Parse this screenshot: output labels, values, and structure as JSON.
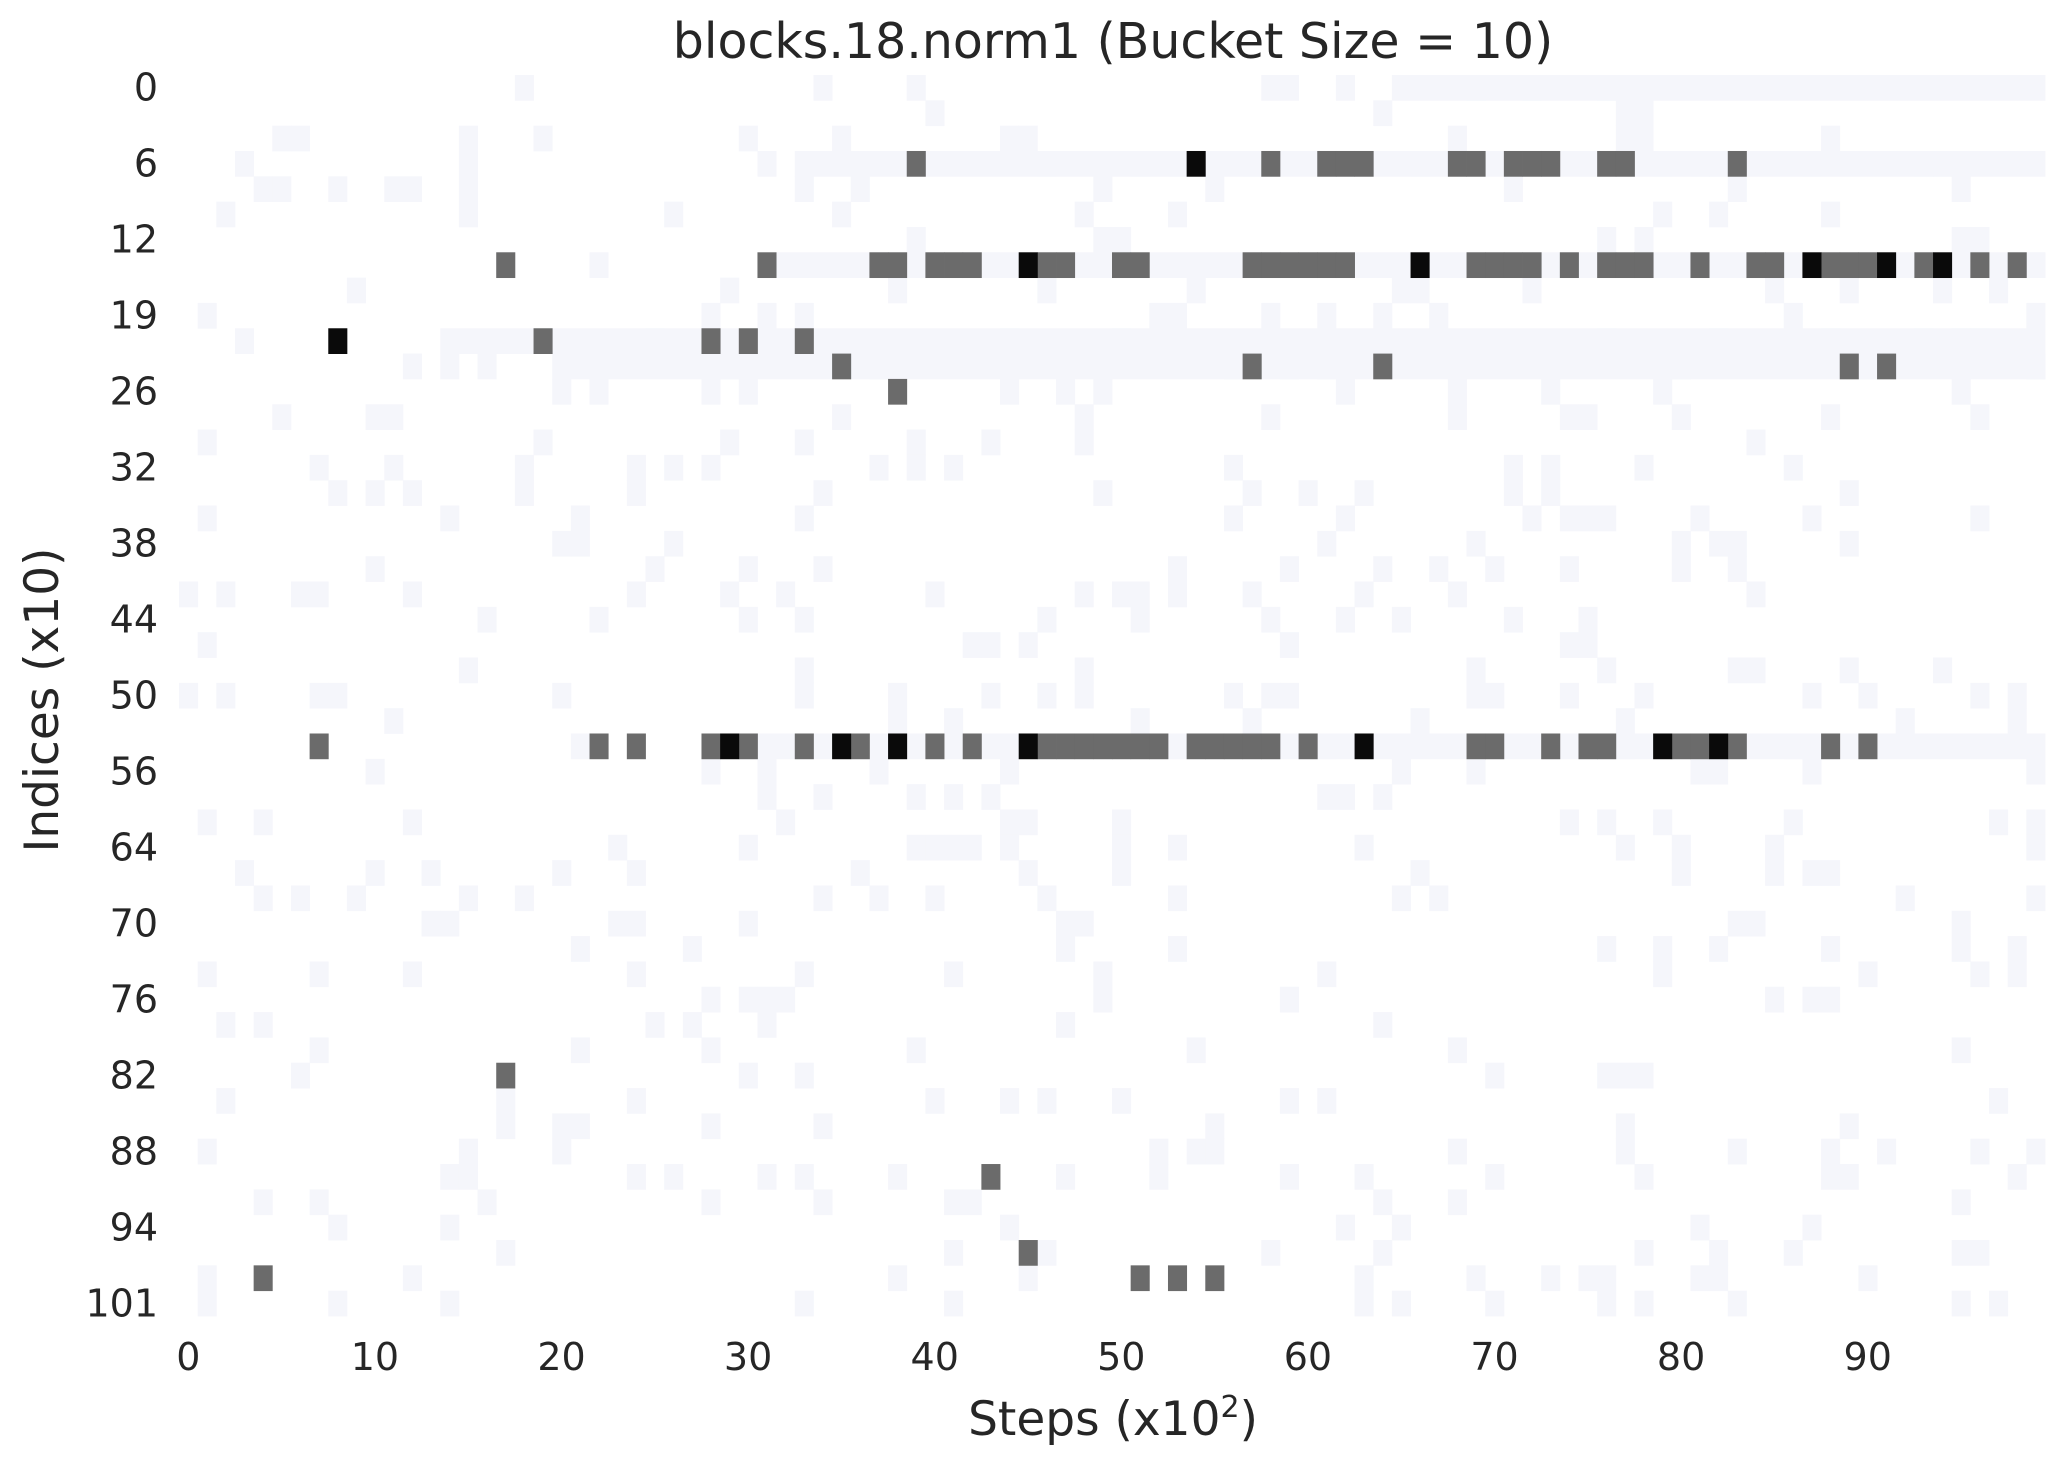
{
  "chart_data": {
    "type": "heatmap",
    "title": "blocks.18.norm1 (Bucket Size = 10)",
    "xlabel": "Steps (x10",
    "xlabel_superscript": "2",
    "xlabel_suffix": ")",
    "ylabel": "Indices (x10)",
    "n_cols": 100,
    "n_rows": 49,
    "x_ticks": [
      {
        "col": 0,
        "label": "0"
      },
      {
        "col": 10,
        "label": "10"
      },
      {
        "col": 20,
        "label": "20"
      },
      {
        "col": 30,
        "label": "30"
      },
      {
        "col": 40,
        "label": "40"
      },
      {
        "col": 50,
        "label": "50"
      },
      {
        "col": 60,
        "label": "60"
      },
      {
        "col": 70,
        "label": "70"
      },
      {
        "col": 80,
        "label": "80"
      },
      {
        "col": 90,
        "label": "90"
      }
    ],
    "y_ticks": [
      {
        "row": 0,
        "label": "0"
      },
      {
        "row": 3,
        "label": "6"
      },
      {
        "row": 6,
        "label": "12"
      },
      {
        "row": 9,
        "label": "19"
      },
      {
        "row": 12,
        "label": "26"
      },
      {
        "row": 15,
        "label": "32"
      },
      {
        "row": 18,
        "label": "38"
      },
      {
        "row": 21,
        "label": "44"
      },
      {
        "row": 24,
        "label": "50"
      },
      {
        "row": 27,
        "label": "56"
      },
      {
        "row": 30,
        "label": "64"
      },
      {
        "row": 33,
        "label": "70"
      },
      {
        "row": 36,
        "label": "76"
      },
      {
        "row": 39,
        "label": "82"
      },
      {
        "row": 42,
        "label": "88"
      },
      {
        "row": 45,
        "label": "94"
      },
      {
        "row": 48,
        "label": "101"
      }
    ],
    "colors": {
      "zero": "#ffffff",
      "faint": "#f5f6fb",
      "medium": "#6b6b6b",
      "high": "#0a0a0a"
    },
    "medium_cells": [
      [
        3,
        39
      ],
      [
        3,
        58
      ],
      [
        3,
        61
      ],
      [
        3,
        62
      ],
      [
        3,
        63
      ],
      [
        3,
        68
      ],
      [
        3,
        69
      ],
      [
        3,
        71
      ],
      [
        3,
        72
      ],
      [
        3,
        73
      ],
      [
        3,
        76
      ],
      [
        3,
        77
      ],
      [
        3,
        83
      ],
      [
        7,
        17
      ],
      [
        7,
        31
      ],
      [
        7,
        37
      ],
      [
        7,
        38
      ],
      [
        7,
        40
      ],
      [
        7,
        41
      ],
      [
        7,
        42
      ],
      [
        7,
        46
      ],
      [
        7,
        47
      ],
      [
        7,
        50
      ],
      [
        7,
        51
      ],
      [
        7,
        57
      ],
      [
        7,
        58
      ],
      [
        7,
        59
      ],
      [
        7,
        60
      ],
      [
        7,
        61
      ],
      [
        7,
        62
      ],
      [
        7,
        69
      ],
      [
        7,
        70
      ],
      [
        7,
        71
      ],
      [
        7,
        72
      ],
      [
        7,
        74
      ],
      [
        7,
        76
      ],
      [
        7,
        77
      ],
      [
        7,
        78
      ],
      [
        7,
        81
      ],
      [
        7,
        84
      ],
      [
        7,
        85
      ],
      [
        7,
        88
      ],
      [
        7,
        89
      ],
      [
        7,
        90
      ],
      [
        7,
        93
      ],
      [
        7,
        96
      ],
      [
        7,
        98
      ],
      [
        10,
        19
      ],
      [
        10,
        28
      ],
      [
        10,
        30
      ],
      [
        10,
        33
      ],
      [
        11,
        35
      ],
      [
        11,
        57
      ],
      [
        11,
        64
      ],
      [
        11,
        89
      ],
      [
        11,
        91
      ],
      [
        12,
        38
      ],
      [
        26,
        7
      ],
      [
        26,
        22
      ],
      [
        26,
        24
      ],
      [
        26,
        28
      ],
      [
        26,
        30
      ],
      [
        26,
        33
      ],
      [
        26,
        36
      ],
      [
        26,
        40
      ],
      [
        26,
        42
      ],
      [
        26,
        46
      ],
      [
        26,
        47
      ],
      [
        26,
        48
      ],
      [
        26,
        49
      ],
      [
        26,
        50
      ],
      [
        26,
        51
      ],
      [
        26,
        52
      ],
      [
        26,
        54
      ],
      [
        26,
        55
      ],
      [
        26,
        56
      ],
      [
        26,
        57
      ],
      [
        26,
        58
      ],
      [
        26,
        60
      ],
      [
        26,
        69
      ],
      [
        26,
        70
      ],
      [
        26,
        73
      ],
      [
        26,
        75
      ],
      [
        26,
        76
      ],
      [
        26,
        80
      ],
      [
        26,
        81
      ],
      [
        26,
        83
      ],
      [
        26,
        88
      ],
      [
        26,
        90
      ],
      [
        39,
        17
      ],
      [
        43,
        43
      ],
      [
        46,
        45
      ],
      [
        47,
        4
      ],
      [
        47,
        51
      ],
      [
        47,
        53
      ],
      [
        47,
        55
      ]
    ],
    "high_cells": [
      [
        3,
        54
      ],
      [
        7,
        45
      ],
      [
        7,
        66
      ],
      [
        7,
        87
      ],
      [
        7,
        91
      ],
      [
        7,
        94
      ],
      [
        10,
        8
      ],
      [
        26,
        29
      ],
      [
        26,
        35
      ],
      [
        26,
        38
      ],
      [
        26,
        45
      ],
      [
        26,
        63
      ],
      [
        26,
        79
      ],
      [
        26,
        82
      ]
    ],
    "faint_row_segments": [
      [
        0,
        65,
        100
      ],
      [
        3,
        33,
        100
      ],
      [
        7,
        32,
        100
      ],
      [
        10,
        14,
        100
      ],
      [
        11,
        20,
        100
      ],
      [
        26,
        30,
        100
      ]
    ]
  }
}
